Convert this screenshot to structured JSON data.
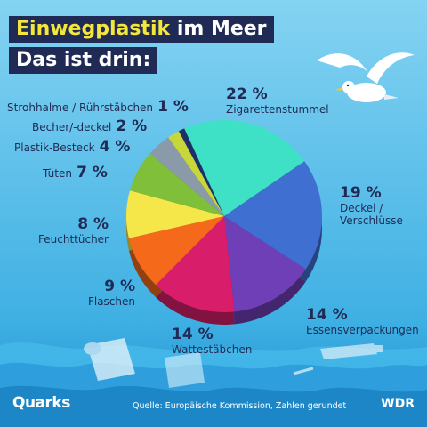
{
  "title": {
    "part1": "Einwegplastik",
    "part2": " im Meer",
    "line2": "Das ist drin:"
  },
  "colors": {
    "sky_top": "#7fd0f0",
    "sky_bottom": "#2a9fd8",
    "navy": "#1f2a55",
    "accent": "#f5e63b"
  },
  "chart_data": {
    "type": "pie",
    "unit": "%",
    "slices": [
      {
        "label": "Zigarettenstummel",
        "pct": "22 %",
        "value": 22,
        "color": "#3ee0c6"
      },
      {
        "label": "Deckel / Verschlüsse",
        "pct": "19 %",
        "value": 19,
        "color": "#3f6fd0"
      },
      {
        "label": "Essensverpackungen",
        "pct": "14 %",
        "value": 14,
        "color": "#6f3fb8"
      },
      {
        "label": "Wattestäbchen",
        "pct": "14 %",
        "value": 14,
        "color": "#d81e6a"
      },
      {
        "label": "Flaschen",
        "pct": "9 %",
        "value": 9,
        "color": "#f56a1a"
      },
      {
        "label": "Feuchttücher",
        "pct": "8 %",
        "value": 8,
        "color": "#f5e64a"
      },
      {
        "label": "Tüten",
        "pct": "7 %",
        "value": 7,
        "color": "#7fbf3a"
      },
      {
        "label": "Plastik-Besteck",
        "pct": "4 %",
        "value": 4,
        "color": "#8a9aa8"
      },
      {
        "label": "Becher/-deckel",
        "pct": "2 %",
        "value": 2,
        "color": "#c9d63a"
      },
      {
        "label": "Strohhalme / Rührstäbchen",
        "pct": "1 %",
        "value": 1,
        "color": "#1e2f66"
      }
    ]
  },
  "labels": {
    "zigaretten": {
      "pct": "22 %",
      "name": "Zigarettenstummel"
    },
    "deckel": {
      "pct": "19 %",
      "name1": "Deckel /",
      "name2": "Verschlüsse"
    },
    "essen": {
      "pct": "14 %",
      "name": "Essensverpackungen"
    },
    "watte": {
      "pct": "14 %",
      "name": "Wattestäbchen"
    },
    "flaschen": {
      "pct": "9 %",
      "name": "Flaschen"
    },
    "feucht": {
      "pct": "8 %",
      "name": "Feuchttücher"
    },
    "tueten": {
      "name": "Tüten",
      "pct": "7 %"
    },
    "besteck": {
      "name": "Plastik-Besteck",
      "pct": "4 %"
    },
    "becher": {
      "name": "Becher/-deckel",
      "pct": "2 %"
    },
    "stroh": {
      "name": "Strohhalme / Rührstäbchen",
      "pct": "1 %"
    }
  },
  "footer": {
    "brand": "Quarks",
    "source": "Quelle: Europäische Kommission, Zahlen gerundet",
    "broadcaster": "WDR"
  }
}
